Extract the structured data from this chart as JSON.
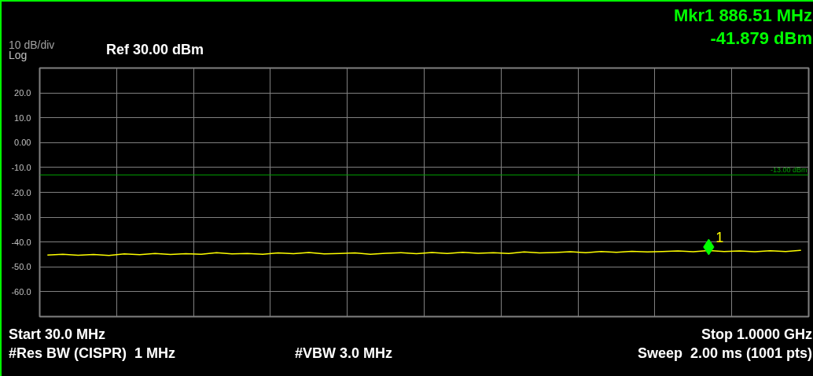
{
  "chart_data": {
    "type": "line",
    "ylabel": "Log",
    "annotations": [
      "10 dB/div",
      "Ref 30.00 dBm",
      "Mkr1 886.51 MHz",
      "-41.879 dBm",
      "Start 30.0 MHz",
      "Stop 1.0000 GHz",
      "#Res BW (CISPR)  1 MHz",
      "#VBW 3.0 MHz",
      "Sweep  2.00 ms (1001 pts)",
      {
        "text": "1",
        "y": -42
      }
    ],
    "categories": [
      null,
      null,
      null,
      null,
      null,
      null,
      null,
      null,
      null,
      null,
      null,
      null,
      null,
      null,
      null,
      null,
      null,
      null,
      null,
      null,
      null,
      null,
      null,
      null,
      null,
      null,
      null,
      null,
      null,
      null,
      null,
      null,
      null,
      null,
      null,
      null,
      null,
      null,
      null,
      null,
      null,
      null,
      null,
      null,
      null,
      null,
      null,
      null,
      null,
      null
    ],
    "series": [
      {
        "color": "#ffff00",
        "values": [
          -45.2,
          -44.9,
          -45.3,
          -45.0,
          -45.4,
          -44.8,
          -45.1,
          -44.6,
          -45.0,
          -44.7,
          -44.9,
          -44.3,
          -44.8,
          -44.6,
          -44.9,
          -44.4,
          -44.7,
          -44.2,
          -44.8,
          -44.6,
          -44.4,
          -44.9,
          -44.5,
          -44.3,
          -44.7,
          -44.2,
          -44.6,
          -44.1,
          -44.5,
          -44.3,
          -44.6,
          -44.0,
          -44.4,
          -44.2,
          -43.9,
          -44.3,
          -43.8,
          -44.1,
          -43.7,
          -44.0,
          -43.8,
          -43.6,
          -43.9,
          -43.4,
          -43.8,
          -43.6,
          -43.9,
          -43.5,
          -43.8,
          -43.3
        ]
      },
      {
        "type": "scatter",
        "marker": "diamond",
        "color": "#00ff00",
        "values": [
          null,
          null,
          null,
          null,
          null,
          null,
          null,
          null,
          null,
          null,
          null,
          null,
          null,
          null,
          null,
          null,
          null,
          null,
          null,
          null,
          null,
          null,
          null,
          null,
          null,
          null,
          null,
          null,
          null,
          null,
          null,
          null,
          null,
          null,
          null,
          null,
          null,
          null,
          null,
          null,
          null,
          null,
          null,
          -42,
          null,
          null,
          null,
          null,
          null,
          null
        ]
      }
    ],
    "ylim": [
      -70,
      30
    ],
    "yticks": [
      {
        "value": -60,
        "label": "-60.0"
      },
      {
        "value": -50,
        "label": "-50.0"
      },
      {
        "value": -40,
        "label": "-40.0"
      },
      {
        "value": -30,
        "label": "-30.0"
      },
      {
        "value": -20,
        "label": "-20.0"
      },
      {
        "value": -10,
        "label": "-10.0"
      },
      {
        "value": 0,
        "label": "0.00"
      },
      {
        "value": 10,
        "label": "10.0"
      },
      {
        "value": 20,
        "label": "20.0"
      }
    ],
    "grid": true,
    "ref_lines": [
      {
        "axis": "y",
        "value": -13,
        "label": "-13.00 dBm",
        "color": "#00a000"
      }
    ]
  }
}
